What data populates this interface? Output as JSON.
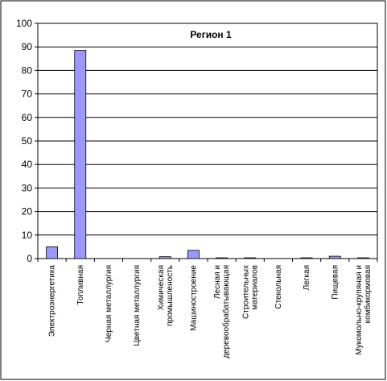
{
  "chart_data": {
    "type": "bar",
    "title": "Регион 1",
    "xlabel": "",
    "ylabel": "",
    "ylim": [
      0,
      100
    ],
    "yticks": [
      0,
      10,
      20,
      30,
      40,
      50,
      60,
      70,
      80,
      90,
      100
    ],
    "grid": true,
    "legend": "none",
    "categories": [
      [
        "Электроэнергетика"
      ],
      [
        "Топливная"
      ],
      [
        "Черная металлургия"
      ],
      [
        "Цветная металлургия"
      ],
      [
        "Химическая",
        "промышленость"
      ],
      [
        "Машиностроение"
      ],
      [
        "Лесная и",
        "деревообрабатывающая"
      ],
      [
        "Строительных",
        "материалов"
      ],
      [
        "Стекольная"
      ],
      [
        "Легкая"
      ],
      [
        "Пищевая"
      ],
      [
        "Мукомольно-крупяная и",
        "комбикормовая"
      ]
    ],
    "values": [
      5,
      88.5,
      0,
      0,
      0.8,
      3.5,
      0.3,
      0.3,
      0,
      0.3,
      1,
      0.3
    ],
    "colors": {
      "bar_fill": "#9999ff",
      "bar_stroke": "#000000",
      "grid": "#000000",
      "frame": "#000000"
    }
  }
}
